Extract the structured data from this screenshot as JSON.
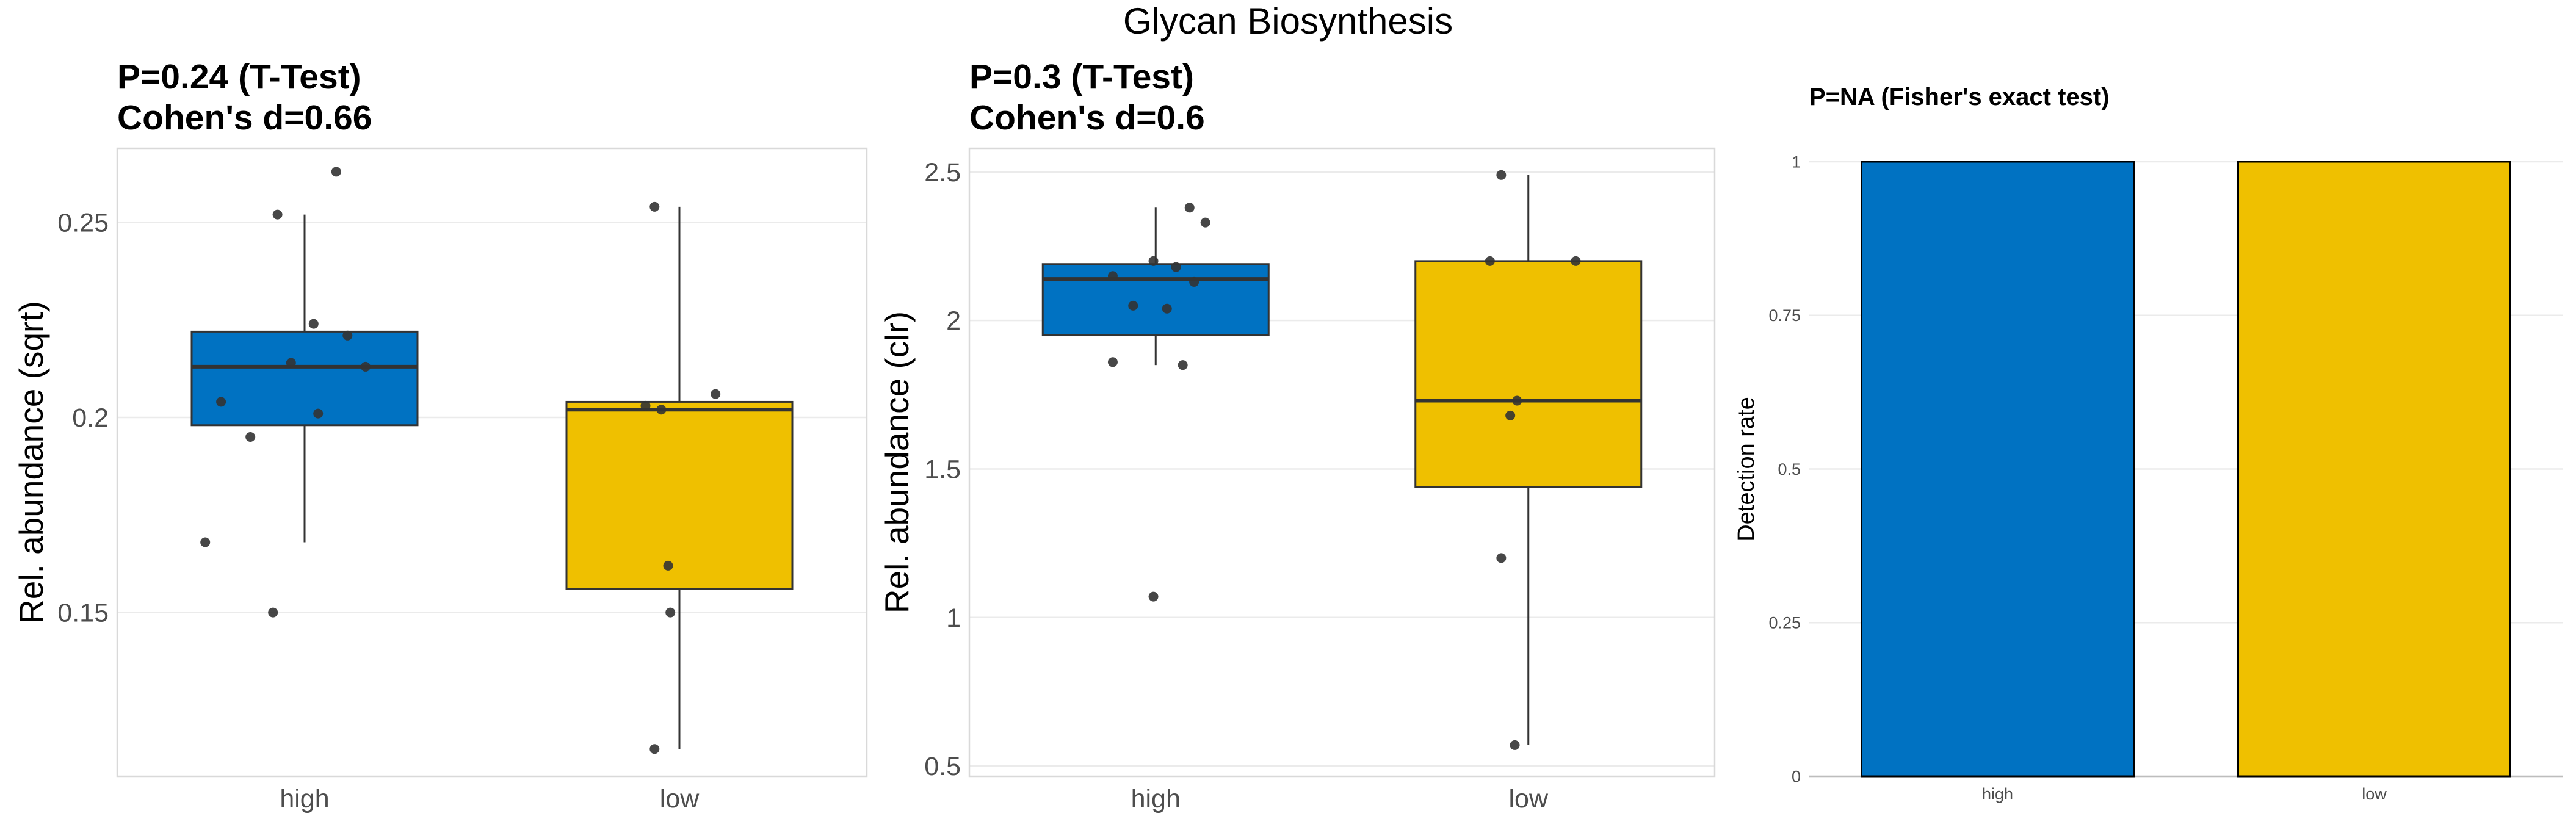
{
  "title": "Glycan Biosynthesis",
  "colors": {
    "high": "#0072C2",
    "low": "#EFC000",
    "point": "#333333"
  },
  "chart_data": [
    {
      "type": "box",
      "title_line1": "P=0.24 (T-Test)",
      "title_line2": "Cohen's d=0.66",
      "ylabel": "Rel. abundance (sqrt)",
      "ylim": [
        0.108,
        0.269
      ],
      "yticks": [
        0.15,
        0.2,
        0.25
      ],
      "ytick_labels": [
        "0.15",
        "0.2",
        "0.25"
      ],
      "categories": [
        "high",
        "low"
      ],
      "boxes": [
        {
          "group": "high",
          "q1": 0.198,
          "median": 0.213,
          "q3": 0.222,
          "whisker_low": 0.168,
          "whisker_high": 0.252
        },
        {
          "group": "low",
          "q1": 0.156,
          "median": 0.202,
          "q3": 0.204,
          "whisker_low": 0.115,
          "whisker_high": 0.254
        }
      ],
      "points": [
        {
          "group": "high",
          "jitter": 0.14,
          "y": 0.263
        },
        {
          "group": "high",
          "jitter": -0.12,
          "y": 0.252
        },
        {
          "group": "high",
          "jitter": 0.04,
          "y": 0.224
        },
        {
          "group": "high",
          "jitter": 0.19,
          "y": 0.221
        },
        {
          "group": "high",
          "jitter": -0.06,
          "y": 0.214
        },
        {
          "group": "high",
          "jitter": 0.27,
          "y": 0.213
        },
        {
          "group": "high",
          "jitter": -0.37,
          "y": 0.204
        },
        {
          "group": "high",
          "jitter": 0.06,
          "y": 0.201
        },
        {
          "group": "high",
          "jitter": -0.24,
          "y": 0.195
        },
        {
          "group": "high",
          "jitter": -0.44,
          "y": 0.168
        },
        {
          "group": "high",
          "jitter": -0.14,
          "y": 0.15
        },
        {
          "group": "low",
          "jitter": -0.11,
          "y": 0.254
        },
        {
          "group": "low",
          "jitter": 0.16,
          "y": 0.206
        },
        {
          "group": "low",
          "jitter": -0.15,
          "y": 0.203
        },
        {
          "group": "low",
          "jitter": -0.08,
          "y": 0.202
        },
        {
          "group": "low",
          "jitter": -0.05,
          "y": 0.162
        },
        {
          "group": "low",
          "jitter": -0.04,
          "y": 0.15
        },
        {
          "group": "low",
          "jitter": -0.11,
          "y": 0.115
        }
      ]
    },
    {
      "type": "box",
      "title_line1": "P=0.3 (T-Test)",
      "title_line2": "Cohen's d=0.6",
      "ylabel": "Rel. abundance (clr)",
      "ylim": [
        0.465,
        2.58
      ],
      "yticks": [
        0.5,
        1,
        1.5,
        2,
        2.5
      ],
      "ytick_labels": [
        "0.5",
        "1",
        "1.5",
        "2",
        "2.5"
      ],
      "categories": [
        "high",
        "low"
      ],
      "boxes": [
        {
          "group": "high",
          "q1": 1.95,
          "median": 2.14,
          "q3": 2.19,
          "whisker_low": 1.85,
          "whisker_high": 2.38
        },
        {
          "group": "low",
          "q1": 1.44,
          "median": 1.73,
          "q3": 2.2,
          "whisker_low": 0.57,
          "whisker_high": 2.49
        }
      ],
      "points": [
        {
          "group": "high",
          "jitter": 0.15,
          "y": 2.38
        },
        {
          "group": "high",
          "jitter": 0.22,
          "y": 2.33
        },
        {
          "group": "high",
          "jitter": -0.01,
          "y": 2.2
        },
        {
          "group": "high",
          "jitter": 0.09,
          "y": 2.18
        },
        {
          "group": "high",
          "jitter": -0.19,
          "y": 2.15
        },
        {
          "group": "high",
          "jitter": 0.17,
          "y": 2.13
        },
        {
          "group": "high",
          "jitter": -0.1,
          "y": 2.05
        },
        {
          "group": "high",
          "jitter": 0.05,
          "y": 2.04
        },
        {
          "group": "high",
          "jitter": -0.19,
          "y": 1.86
        },
        {
          "group": "high",
          "jitter": 0.12,
          "y": 1.85
        },
        {
          "group": "high",
          "jitter": -0.01,
          "y": 1.07
        },
        {
          "group": "low",
          "jitter": -0.12,
          "y": 2.49
        },
        {
          "group": "low",
          "jitter": -0.17,
          "y": 2.2
        },
        {
          "group": "low",
          "jitter": 0.21,
          "y": 2.2
        },
        {
          "group": "low",
          "jitter": -0.05,
          "y": 1.73
        },
        {
          "group": "low",
          "jitter": -0.08,
          "y": 1.68
        },
        {
          "group": "low",
          "jitter": -0.12,
          "y": 1.2
        },
        {
          "group": "low",
          "jitter": -0.06,
          "y": 0.57
        }
      ]
    },
    {
      "type": "bar",
      "title_line1": "P=NA (Fisher's exact test)",
      "ylabel": "Detection rate",
      "ylim": [
        0,
        1.0
      ],
      "yticks": [
        0,
        0.25,
        0.5,
        0.75,
        1
      ],
      "ytick_labels": [
        "0",
        "0.25",
        "0.5",
        "0.75",
        "1"
      ],
      "categories": [
        "high",
        "low"
      ],
      "values": [
        1,
        1
      ]
    }
  ]
}
